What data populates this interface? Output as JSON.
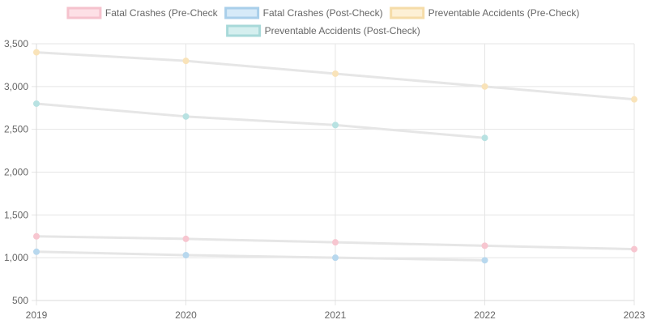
{
  "chart_data": {
    "type": "line",
    "x": [
      "2019",
      "2020",
      "2021",
      "2022",
      "2023"
    ],
    "ylim": [
      500,
      3500
    ],
    "yticks": [
      500,
      1000,
      1500,
      2000,
      2500,
      3000,
      3500
    ],
    "ytick_labels": [
      "500",
      "1,000",
      "1,500",
      "2,000",
      "2,500",
      "3,000",
      "3,500"
    ],
    "grid": true,
    "legend_position": "top",
    "line_color": "#e6e6e6",
    "grid_color": "#e5e5e5",
    "series": [
      {
        "name": "Fatal Crashes (Pre-Check",
        "values": [
          1250,
          1220,
          1180,
          1140,
          1100
        ],
        "point_color": "#f7c6d0",
        "legend_fill": "#fde0e6",
        "legend_border": "#f5c2cd"
      },
      {
        "name": "Fatal Crashes (Post-Check)",
        "values": [
          1070,
          1030,
          1000,
          970,
          null
        ],
        "point_color": "#b8d8ee",
        "legend_fill": "#d6eaf8",
        "legend_border": "#a9cfea"
      },
      {
        "name": "Preventable Accidents (Pre-Check)",
        "values": [
          3400,
          3300,
          3150,
          3000,
          2850
        ],
        "point_color": "#f9e3b9",
        "legend_fill": "#fdf0d5",
        "legend_border": "#f5dca8"
      },
      {
        "name": "Preventable Accidents (Post-Check)",
        "values": [
          2800,
          2650,
          2550,
          2400,
          null
        ],
        "point_color": "#b8e2e2",
        "legend_fill": "#d5efef",
        "legend_border": "#a8d9d9"
      }
    ]
  }
}
